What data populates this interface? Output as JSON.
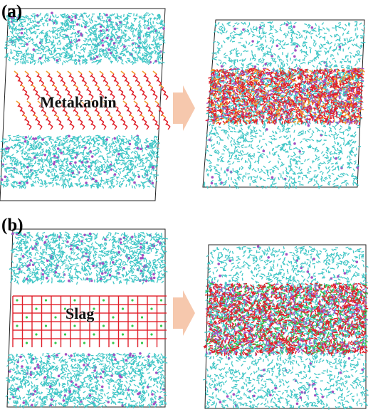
{
  "panel_a": {
    "label": "(a)",
    "material": "Metakaolin"
  },
  "panel_b": {
    "label": "(b)",
    "material": "Slag"
  },
  "colors": {
    "water": "#3fc6c6",
    "ion": "#a34fc2",
    "framework": "#e0202a",
    "framework_accent": "#f29b2a",
    "slag_accent": "#33c84a",
    "arrow": "#f6c8ad",
    "box_edge": "#222222"
  },
  "icons": [
    "arrow-right-icon",
    "arrow-right-icon"
  ]
}
